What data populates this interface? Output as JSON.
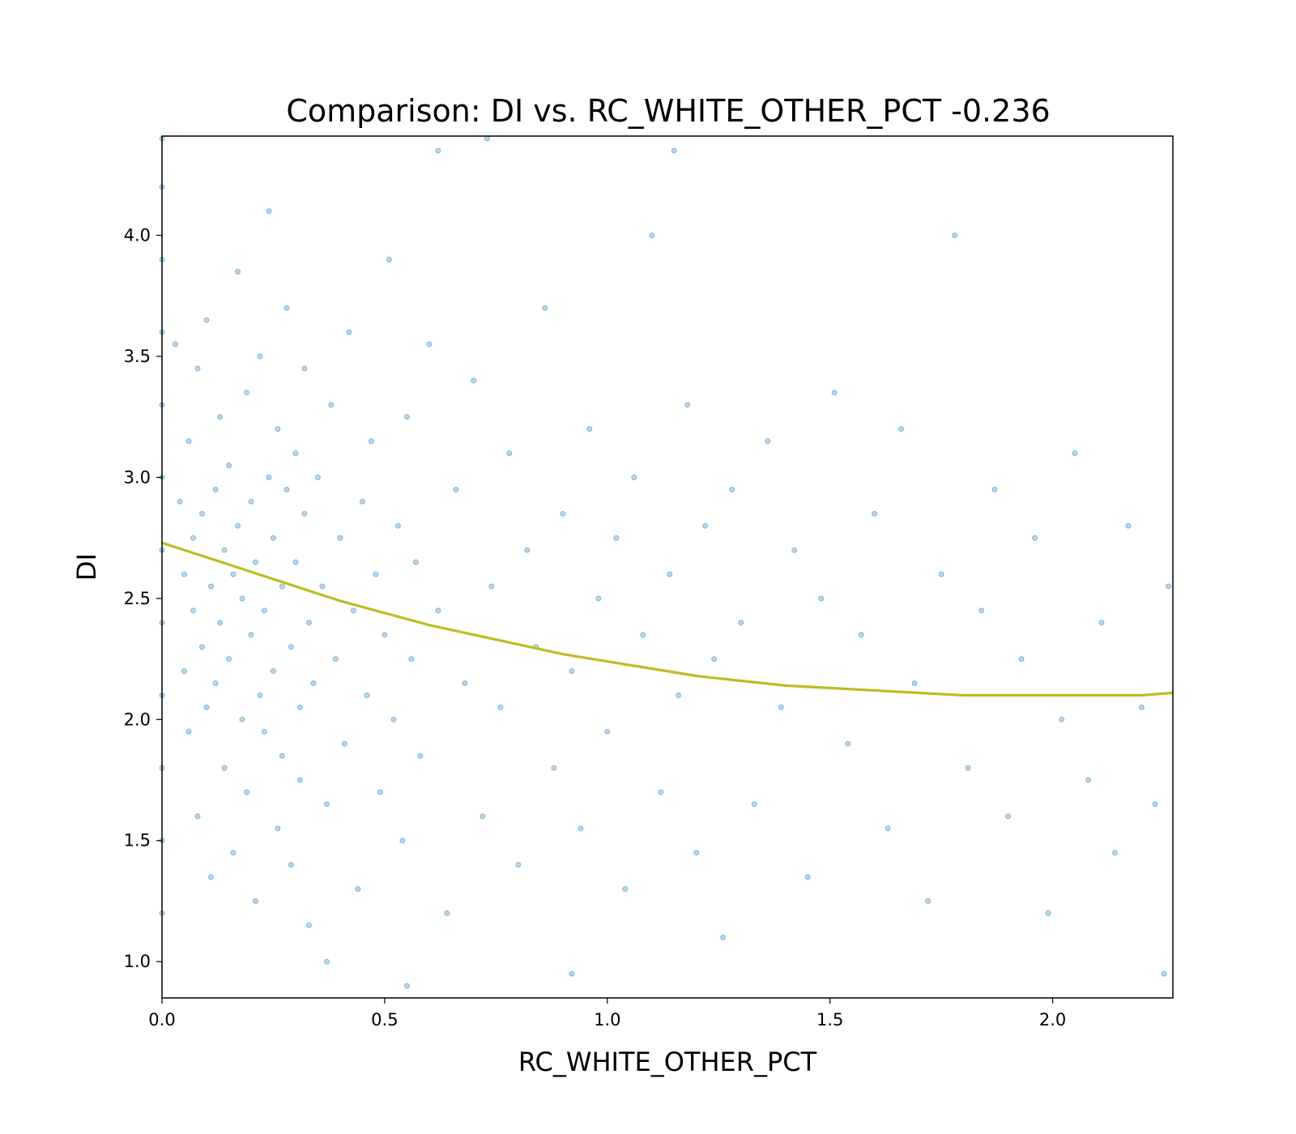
{
  "chart_data": {
    "type": "scatter",
    "title": "Comparison:  DI  vs.  RC_WHITE_OTHER_PCT  -0.236",
    "xlabel": "RC_WHITE_OTHER_PCT",
    "ylabel": "DI",
    "xlim": [
      0.0,
      2.27
    ],
    "ylim": [
      0.85,
      4.41
    ],
    "xticks": [
      0.0,
      0.5,
      1.0,
      1.5,
      2.0
    ],
    "xtick_labels": [
      "0.0",
      "0.5",
      "1.0",
      "1.5",
      "2.0"
    ],
    "yticks": [
      1.0,
      1.5,
      2.0,
      2.5,
      3.0,
      3.5,
      4.0
    ],
    "ytick_labels": [
      "1.0",
      "1.5",
      "2.0",
      "2.5",
      "3.0",
      "3.5",
      "4.0"
    ],
    "grid": false,
    "point_color": "#1f77b4",
    "point_alpha": 0.3,
    "fit_color": "#bcbd22",
    "fit_line": {
      "x": [
        0.0,
        0.1,
        0.2,
        0.3,
        0.4,
        0.5,
        0.6,
        0.7,
        0.8,
        0.9,
        1.0,
        1.1,
        1.2,
        1.3,
        1.4,
        1.5,
        1.6,
        1.7,
        1.8,
        1.9,
        2.0,
        2.1,
        2.2,
        2.27
      ],
      "y": [
        2.73,
        2.67,
        2.61,
        2.55,
        2.49,
        2.44,
        2.39,
        2.35,
        2.31,
        2.27,
        2.24,
        2.21,
        2.18,
        2.16,
        2.14,
        2.13,
        2.12,
        2.11,
        2.1,
        2.1,
        2.1,
        2.1,
        2.1,
        2.11
      ]
    },
    "points": [
      [
        0.0,
        4.4
      ],
      [
        0.0,
        4.2
      ],
      [
        0.0,
        3.9
      ],
      [
        0.0,
        3.6
      ],
      [
        0.0,
        3.3
      ],
      [
        0.0,
        3.0
      ],
      [
        0.0,
        2.7
      ],
      [
        0.0,
        2.4
      ],
      [
        0.0,
        2.1
      ],
      [
        0.0,
        1.8
      ],
      [
        0.0,
        1.5
      ],
      [
        0.0,
        1.2
      ],
      [
        0.03,
        3.55
      ],
      [
        0.04,
        2.9
      ],
      [
        0.05,
        2.6
      ],
      [
        0.05,
        2.2
      ],
      [
        0.06,
        1.95
      ],
      [
        0.06,
        3.15
      ],
      [
        0.07,
        2.45
      ],
      [
        0.07,
        2.75
      ],
      [
        0.08,
        1.6
      ],
      [
        0.08,
        3.45
      ],
      [
        0.09,
        2.3
      ],
      [
        0.09,
        2.85
      ],
      [
        0.1,
        2.05
      ],
      [
        0.1,
        3.65
      ],
      [
        0.11,
        2.55
      ],
      [
        0.11,
        1.35
      ],
      [
        0.12,
        2.95
      ],
      [
        0.12,
        2.15
      ],
      [
        0.13,
        3.25
      ],
      [
        0.13,
        2.4
      ],
      [
        0.14,
        1.8
      ],
      [
        0.14,
        2.7
      ],
      [
        0.15,
        3.05
      ],
      [
        0.15,
        2.25
      ],
      [
        0.16,
        2.6
      ],
      [
        0.16,
        1.45
      ],
      [
        0.17,
        2.8
      ],
      [
        0.17,
        3.85
      ],
      [
        0.18,
        2.0
      ],
      [
        0.18,
        2.5
      ],
      [
        0.19,
        3.35
      ],
      [
        0.19,
        1.7
      ],
      [
        0.2,
        2.35
      ],
      [
        0.2,
        2.9
      ],
      [
        0.21,
        1.25
      ],
      [
        0.21,
        2.65
      ],
      [
        0.22,
        3.5
      ],
      [
        0.22,
        2.1
      ],
      [
        0.23,
        2.45
      ],
      [
        0.23,
        1.95
      ],
      [
        0.24,
        3.0
      ],
      [
        0.24,
        4.1
      ],
      [
        0.25,
        2.2
      ],
      [
        0.25,
        2.75
      ],
      [
        0.26,
        1.55
      ],
      [
        0.26,
        3.2
      ],
      [
        0.27,
        2.55
      ],
      [
        0.27,
        1.85
      ],
      [
        0.28,
        2.95
      ],
      [
        0.28,
        3.7
      ],
      [
        0.29,
        2.3
      ],
      [
        0.29,
        1.4
      ],
      [
        0.3,
        2.65
      ],
      [
        0.3,
        3.1
      ],
      [
        0.31,
        2.05
      ],
      [
        0.31,
        1.75
      ],
      [
        0.32,
        2.85
      ],
      [
        0.32,
        3.45
      ],
      [
        0.33,
        2.4
      ],
      [
        0.33,
        1.15
      ],
      [
        0.34,
        2.15
      ],
      [
        0.35,
        3.0
      ],
      [
        0.36,
        2.55
      ],
      [
        0.37,
        1.65
      ],
      [
        0.38,
        3.3
      ],
      [
        0.39,
        2.25
      ],
      [
        0.4,
        2.75
      ],
      [
        0.41,
        1.9
      ],
      [
        0.42,
        3.6
      ],
      [
        0.43,
        2.45
      ],
      [
        0.44,
        1.3
      ],
      [
        0.45,
        2.9
      ],
      [
        0.46,
        2.1
      ],
      [
        0.47,
        3.15
      ],
      [
        0.48,
        2.6
      ],
      [
        0.49,
        1.7
      ],
      [
        0.5,
        2.35
      ],
      [
        0.51,
        3.9
      ],
      [
        0.52,
        2.0
      ],
      [
        0.53,
        2.8
      ],
      [
        0.54,
        1.5
      ],
      [
        0.55,
        3.25
      ],
      [
        0.56,
        2.25
      ],
      [
        0.57,
        2.65
      ],
      [
        0.58,
        1.85
      ],
      [
        0.6,
        3.55
      ],
      [
        0.62,
        2.45
      ],
      [
        0.64,
        1.2
      ],
      [
        0.66,
        2.95
      ],
      [
        0.68,
        2.15
      ],
      [
        0.7,
        3.4
      ],
      [
        0.72,
        1.6
      ],
      [
        0.74,
        2.55
      ],
      [
        0.76,
        2.05
      ],
      [
        0.78,
        3.1
      ],
      [
        0.8,
        1.4
      ],
      [
        0.82,
        2.7
      ],
      [
        0.84,
        2.3
      ],
      [
        0.86,
        3.7
      ],
      [
        0.88,
        1.8
      ],
      [
        0.9,
        2.85
      ],
      [
        0.92,
        2.2
      ],
      [
        0.94,
        1.55
      ],
      [
        0.96,
        3.2
      ],
      [
        0.98,
        2.5
      ],
      [
        1.0,
        1.95
      ],
      [
        1.02,
        2.75
      ],
      [
        1.04,
        1.3
      ],
      [
        1.06,
        3.0
      ],
      [
        1.08,
        2.35
      ],
      [
        1.1,
        4.0
      ],
      [
        1.12,
        1.7
      ],
      [
        1.14,
        2.6
      ],
      [
        1.16,
        2.1
      ],
      [
        1.18,
        3.3
      ],
      [
        1.2,
        1.45
      ],
      [
        1.22,
        2.8
      ],
      [
        1.24,
        2.25
      ],
      [
        1.26,
        1.1
      ],
      [
        1.28,
        2.95
      ],
      [
        1.3,
        2.4
      ],
      [
        1.33,
        1.65
      ],
      [
        1.36,
        3.15
      ],
      [
        1.39,
        2.05
      ],
      [
        1.42,
        2.7
      ],
      [
        1.45,
        1.35
      ],
      [
        1.48,
        2.5
      ],
      [
        1.51,
        3.35
      ],
      [
        1.54,
        1.9
      ],
      [
        1.57,
        2.35
      ],
      [
        1.6,
        2.85
      ],
      [
        1.63,
        1.55
      ],
      [
        1.66,
        3.2
      ],
      [
        1.69,
        2.15
      ],
      [
        1.72,
        1.25
      ],
      [
        1.75,
        2.6
      ],
      [
        1.78,
        4.0
      ],
      [
        1.81,
        1.8
      ],
      [
        1.84,
        2.45
      ],
      [
        1.87,
        2.95
      ],
      [
        1.9,
        1.6
      ],
      [
        1.93,
        2.25
      ],
      [
        1.96,
        2.75
      ],
      [
        1.99,
        1.2
      ],
      [
        2.02,
        2.0
      ],
      [
        2.05,
        3.1
      ],
      [
        2.08,
        1.75
      ],
      [
        2.11,
        2.4
      ],
      [
        2.14,
        1.45
      ],
      [
        2.17,
        2.8
      ],
      [
        2.2,
        2.05
      ],
      [
        2.23,
        1.65
      ],
      [
        2.26,
        2.55
      ],
      [
        2.25,
        0.95
      ],
      [
        1.15,
        4.35
      ],
      [
        0.62,
        4.35
      ],
      [
        0.73,
        4.4
      ],
      [
        0.37,
        1.0
      ],
      [
        0.55,
        0.9
      ],
      [
        0.92,
        0.95
      ]
    ]
  }
}
